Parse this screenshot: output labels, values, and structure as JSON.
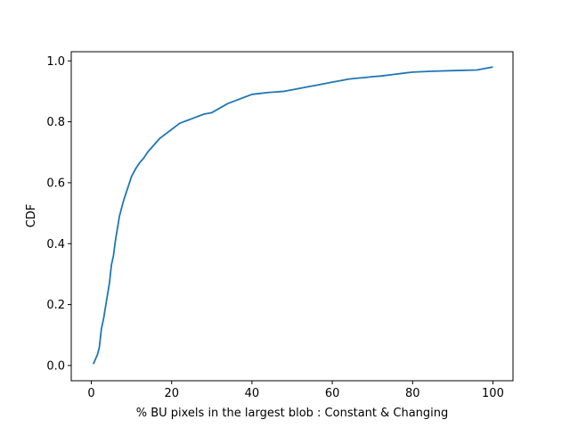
{
  "chart_data": {
    "type": "line",
    "title": "",
    "xlabel": "% BU pixels in the largest blob : Constant & Changing",
    "ylabel": "CDF",
    "xlim": [
      -5,
      105
    ],
    "ylim": [
      -0.05,
      1.03
    ],
    "x_ticks": [
      0,
      20,
      40,
      60,
      80,
      100
    ],
    "y_ticks": [
      0.0,
      0.2,
      0.4,
      0.6,
      0.8,
      1.0
    ],
    "x_tick_labels": [
      "0",
      "20",
      "40",
      "60",
      "80",
      "100"
    ],
    "y_tick_labels": [
      "0.0",
      "0.2",
      "0.4",
      "0.6",
      "0.8",
      "1.0"
    ],
    "grid": false,
    "series": [
      {
        "color": "#1f77b4",
        "x": [
          0.5,
          1.0,
          1.5,
          2.0,
          2.5,
          3.0,
          3.5,
          4.0,
          4.5,
          5.0,
          5.5,
          6.0,
          6.5,
          7.0,
          7.5,
          8.0,
          8.5,
          9.0,
          9.5,
          10.0,
          11.0,
          12.0,
          13.0,
          14.0,
          15.0,
          16.0,
          17.0,
          18.0,
          19.0,
          20.0,
          21.0,
          22.0,
          23.0,
          24.0,
          25.0,
          26.0,
          27.0,
          28.0,
          30.0,
          32.0,
          34.0,
          36.0,
          38.0,
          40.0,
          42.0,
          44.0,
          46.0,
          48.0,
          50.0,
          52.0,
          54.0,
          56.0,
          58.0,
          60.0,
          62.0,
          64.0,
          66.0,
          68.0,
          70.0,
          72.0,
          75.0,
          78.0,
          80.0,
          85.0,
          90.0,
          96.0,
          100.0
        ],
        "y": [
          0.005,
          0.02,
          0.035,
          0.06,
          0.12,
          0.15,
          0.19,
          0.23,
          0.27,
          0.33,
          0.36,
          0.41,
          0.45,
          0.49,
          0.515,
          0.54,
          0.56,
          0.58,
          0.6,
          0.62,
          0.645,
          0.665,
          0.68,
          0.7,
          0.715,
          0.73,
          0.745,
          0.755,
          0.765,
          0.775,
          0.785,
          0.795,
          0.8,
          0.805,
          0.81,
          0.815,
          0.82,
          0.825,
          0.83,
          0.845,
          0.86,
          0.87,
          0.88,
          0.89,
          0.893,
          0.896,
          0.898,
          0.9,
          0.905,
          0.91,
          0.915,
          0.92,
          0.925,
          0.93,
          0.935,
          0.94,
          0.943,
          0.945,
          0.948,
          0.95,
          0.955,
          0.96,
          0.963,
          0.966,
          0.968,
          0.97,
          0.98
        ]
      }
    ]
  }
}
